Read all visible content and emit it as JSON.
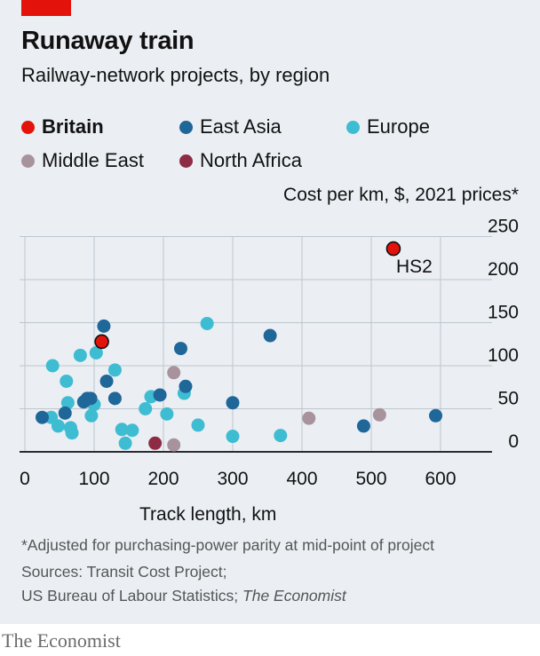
{
  "title": "Runaway train",
  "subtitle": "Railway-network projects, by region",
  "legend": [
    {
      "name": "Britain",
      "color": "#e3120b"
    },
    {
      "name": "East Asia",
      "color": "#1f6699"
    },
    {
      "name": "Europe",
      "color": "#3ebcd2"
    },
    {
      "name": "Middle East",
      "color": "#a8939d"
    },
    {
      "name": "North Africa",
      "color": "#8e2c46"
    }
  ],
  "footnotes": {
    "asterisk": "*Adjusted for purchasing-power parity at mid-point of project",
    "sources_1": "Sources: Transit Cost Project;",
    "sources_2": "US Bureau of Labour Statistics; ",
    "sources_2_italic": "The Economist"
  },
  "brand": "The Economist",
  "chart_data": {
    "type": "scatter",
    "xlabel": "Track length, km",
    "ylabel": "Cost per km, $, 2021 prices*",
    "xlim": [
      0,
      650
    ],
    "ylim": [
      0,
      250
    ],
    "xticks": [
      0,
      100,
      200,
      300,
      400,
      500,
      600
    ],
    "yticks": [
      0,
      50,
      100,
      150,
      200,
      250
    ],
    "y_axis_side": "right",
    "grid": true,
    "legend_position": "top",
    "annotations": [
      {
        "text": "HS2",
        "series": "Britain",
        "point_index": 1
      }
    ],
    "series": [
      {
        "name": "Britain",
        "color": "#e3120b",
        "points": [
          [
            111,
            128
          ],
          [
            532,
            236
          ]
        ]
      },
      {
        "name": "East Asia",
        "color": "#1f6699",
        "points": [
          [
            25,
            40
          ],
          [
            58,
            45
          ],
          [
            85,
            58
          ],
          [
            90,
            62
          ],
          [
            95,
            62
          ],
          [
            118,
            82
          ],
          [
            114,
            146
          ],
          [
            130,
            62
          ],
          [
            195,
            66
          ],
          [
            225,
            120
          ],
          [
            232,
            76
          ],
          [
            300,
            57
          ],
          [
            354,
            135
          ],
          [
            489,
            30
          ],
          [
            593,
            42
          ]
        ]
      },
      {
        "name": "Europe",
        "color": "#3ebcd2",
        "points": [
          [
            38,
            40
          ],
          [
            40,
            100
          ],
          [
            48,
            30
          ],
          [
            60,
            82
          ],
          [
            62,
            57
          ],
          [
            66,
            28
          ],
          [
            68,
            22
          ],
          [
            80,
            112
          ],
          [
            96,
            42
          ],
          [
            100,
            55
          ],
          [
            103,
            115
          ],
          [
            130,
            95
          ],
          [
            140,
            26
          ],
          [
            145,
            10
          ],
          [
            155,
            25
          ],
          [
            174,
            50
          ],
          [
            182,
            64
          ],
          [
            205,
            44
          ],
          [
            230,
            68
          ],
          [
            250,
            31
          ],
          [
            263,
            149
          ],
          [
            300,
            18
          ],
          [
            369,
            19
          ]
        ]
      },
      {
        "name": "Middle East",
        "color": "#a8939d",
        "points": [
          [
            215,
            92
          ],
          [
            215,
            8
          ],
          [
            410,
            39
          ],
          [
            512,
            43
          ]
        ]
      },
      {
        "name": "North Africa",
        "color": "#8e2c46",
        "points": [
          [
            188,
            10
          ]
        ]
      }
    ]
  }
}
